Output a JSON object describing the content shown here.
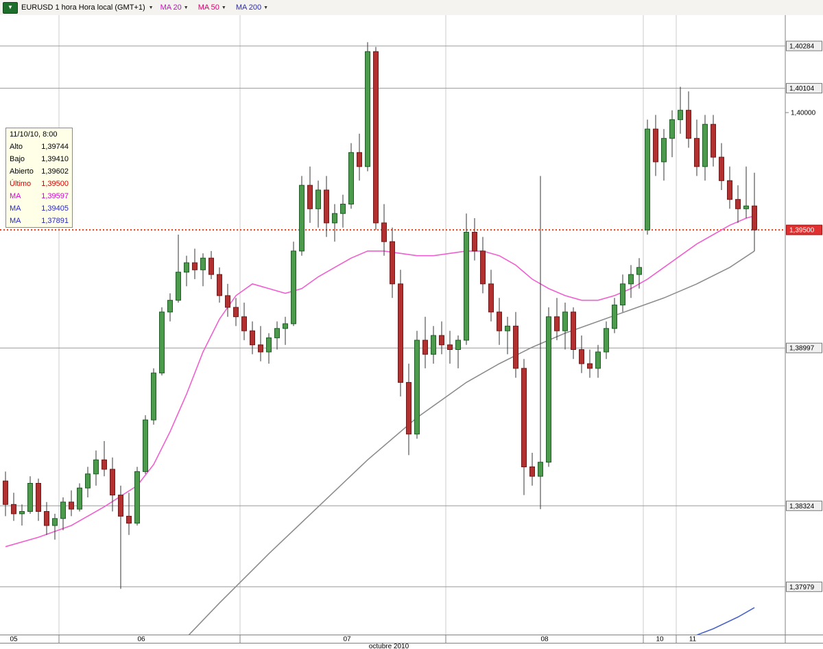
{
  "toolbar": {
    "symbol_label": "EURUSD 1 hora Hora local (GMT+1)",
    "symbol_icon_glyph": "▼",
    "dropdown_glyph": "▼",
    "ma_buttons": [
      {
        "label": "MA 20",
        "color": "#d800d8"
      },
      {
        "label": "MA 50",
        "color": "#d8006c"
      },
      {
        "label": "MA 200",
        "color": "#2626c9"
      }
    ]
  },
  "tooltip": {
    "datetime": "11/10/10, 8:00",
    "rows": [
      {
        "label": "Alto",
        "value": "1,39744",
        "color": "#000000"
      },
      {
        "label": "Bajo",
        "value": "1,39410",
        "color": "#000000"
      },
      {
        "label": "Abierto",
        "value": "1,39602",
        "color": "#000000"
      },
      {
        "label": "Último",
        "value": "1,39500",
        "color": "#d00000"
      },
      {
        "label": "MA",
        "value": "1,39597",
        "color": "#d800d8"
      },
      {
        "label": "MA",
        "value": "1,39405",
        "color": "#2626c9"
      },
      {
        "label": "MA",
        "value": "1,37891",
        "color": "#2626c9"
      }
    ]
  },
  "colors": {
    "candle_up": "#4c9a4c",
    "candle_up_border": "#1f5c26",
    "candle_down": "#b23030",
    "candle_down_border": "#6f1a1a",
    "wick": "#333333",
    "grid": "#999999",
    "day_grid": "#cccccc",
    "axis_line": "#808080",
    "last_price_line": "#ff3300",
    "label_box_bg": "#f0f0f0",
    "label_box_border": "#777777",
    "last_label_bg": "#e03030",
    "last_label_text": "#ffffff"
  },
  "chart_data": {
    "type": "candlestick",
    "symbol": "EURUSD",
    "timeframe": "1 hora",
    "timezone": "Hora local (GMT+1)",
    "last_price": 1.395,
    "y_axis": {
      "grid_prices": [
        1.40284,
        1.40104,
        1.38997,
        1.38324,
        1.37979
      ],
      "boxed_labels": [
        {
          "price": 1.40284,
          "label": "1,40284"
        },
        {
          "price": 1.40104,
          "label": "1,40104"
        },
        {
          "price": 1.38997,
          "label": "1,38997"
        },
        {
          "price": 1.38324,
          "label": "1,38324"
        },
        {
          "price": 1.37979,
          "label": "1,37979"
        }
      ],
      "plain_labels": [
        {
          "price": 1.4,
          "label": "1,40000"
        }
      ],
      "last_label": {
        "price": 1.395,
        "label": "1,39500"
      }
    },
    "x_axis": {
      "month_label": "octubre 2010",
      "day_labels": [
        {
          "label": "05",
          "i": 1
        },
        {
          "label": "06",
          "i": 16.5
        },
        {
          "label": "07",
          "i": 41.5
        },
        {
          "label": "08",
          "i": 65.5
        },
        {
          "label": "10",
          "i": 79.5
        },
        {
          "label": "11",
          "i": 83.5
        }
      ],
      "day_boundaries": [
        6.5,
        28.5,
        53.5,
        77.5,
        81.5
      ]
    },
    "candles": [
      [
        1.3843,
        1.3847,
        1.3828,
        1.3833
      ],
      [
        1.3833,
        1.3838,
        1.3826,
        1.3829
      ],
      [
        1.3829,
        1.3833,
        1.3824,
        1.383
      ],
      [
        1.383,
        1.3845,
        1.3829,
        1.3842
      ],
      [
        1.3842,
        1.3844,
        1.3826,
        1.383
      ],
      [
        1.383,
        1.3834,
        1.382,
        1.3824
      ],
      [
        1.3824,
        1.3829,
        1.3818,
        1.3827
      ],
      [
        1.3827,
        1.3836,
        1.3822,
        1.3834
      ],
      [
        1.3834,
        1.3839,
        1.3828,
        1.3831
      ],
      [
        1.3831,
        1.3842,
        1.383,
        1.384
      ],
      [
        1.384,
        1.3849,
        1.3836,
        1.3846
      ],
      [
        1.3846,
        1.3856,
        1.3841,
        1.3852
      ],
      [
        1.3852,
        1.386,
        1.3845,
        1.3848
      ],
      [
        1.3848,
        1.3853,
        1.383,
        1.3837
      ],
      [
        1.3837,
        1.3841,
        1.3797,
        1.3828
      ],
      [
        1.3828,
        1.3838,
        1.382,
        1.3825
      ],
      [
        1.3825,
        1.3849,
        1.3824,
        1.3847
      ],
      [
        1.3847,
        1.3871,
        1.3846,
        1.3869
      ],
      [
        1.3869,
        1.3891,
        1.3867,
        1.3889
      ],
      [
        1.3889,
        1.3917,
        1.3888,
        1.3915
      ],
      [
        1.3915,
        1.3923,
        1.3911,
        1.392
      ],
      [
        1.392,
        1.3948,
        1.3919,
        1.3932
      ],
      [
        1.3932,
        1.3939,
        1.3926,
        1.3936
      ],
      [
        1.3936,
        1.3942,
        1.3929,
        1.3933
      ],
      [
        1.3933,
        1.394,
        1.3926,
        1.3938
      ],
      [
        1.3938,
        1.3941,
        1.3929,
        1.3931
      ],
      [
        1.3931,
        1.3934,
        1.3919,
        1.3922
      ],
      [
        1.3922,
        1.3927,
        1.3913,
        1.3917
      ],
      [
        1.3917,
        1.3921,
        1.3909,
        1.3913
      ],
      [
        1.3913,
        1.3919,
        1.3903,
        1.3907
      ],
      [
        1.3907,
        1.3911,
        1.3897,
        1.3901
      ],
      [
        1.3901,
        1.3909,
        1.3894,
        1.3898
      ],
      [
        1.3898,
        1.3906,
        1.3893,
        1.3904
      ],
      [
        1.3904,
        1.3911,
        1.3899,
        1.3908
      ],
      [
        1.3908,
        1.3913,
        1.3901,
        1.391
      ],
      [
        1.391,
        1.3945,
        1.3909,
        1.3941
      ],
      [
        1.3941,
        1.3973,
        1.3939,
        1.3969
      ],
      [
        1.3969,
        1.3977,
        1.3953,
        1.3959
      ],
      [
        1.3959,
        1.3971,
        1.3951,
        1.3967
      ],
      [
        1.3967,
        1.3973,
        1.3947,
        1.3953
      ],
      [
        1.3953,
        1.3961,
        1.3945,
        1.3957
      ],
      [
        1.3957,
        1.3965,
        1.3951,
        1.3961
      ],
      [
        1.3961,
        1.3987,
        1.3959,
        1.3983
      ],
      [
        1.3983,
        1.3991,
        1.3971,
        1.3977
      ],
      [
        1.3977,
        1.403,
        1.3975,
        1.4026
      ],
      [
        1.4026,
        1.4028,
        1.395,
        1.3953
      ],
      [
        1.3953,
        1.3961,
        1.3939,
        1.3945
      ],
      [
        1.3945,
        1.3951,
        1.3921,
        1.3927
      ],
      [
        1.3927,
        1.3933,
        1.3879,
        1.3885
      ],
      [
        1.3885,
        1.3893,
        1.3854,
        1.3863
      ],
      [
        1.3863,
        1.3907,
        1.3861,
        1.3903
      ],
      [
        1.3903,
        1.3913,
        1.3891,
        1.3897
      ],
      [
        1.3897,
        1.3909,
        1.3893,
        1.3905
      ],
      [
        1.3905,
        1.3911,
        1.3897,
        1.3901
      ],
      [
        1.3901,
        1.3907,
        1.3893,
        1.3899
      ],
      [
        1.3899,
        1.3905,
        1.3891,
        1.3903
      ],
      [
        1.3903,
        1.3957,
        1.3901,
        1.3949
      ],
      [
        1.3949,
        1.3955,
        1.3937,
        1.3941
      ],
      [
        1.3941,
        1.3947,
        1.3923,
        1.3927
      ],
      [
        1.3927,
        1.3933,
        1.3911,
        1.3915
      ],
      [
        1.3915,
        1.3921,
        1.3901,
        1.3907
      ],
      [
        1.3907,
        1.3913,
        1.3897,
        1.3909
      ],
      [
        1.3909,
        1.3915,
        1.3887,
        1.3891
      ],
      [
        1.3891,
        1.3895,
        1.3837,
        1.3849
      ],
      [
        1.3849,
        1.3855,
        1.3841,
        1.3845
      ],
      [
        1.3845,
        1.3973,
        1.3831,
        1.3851
      ],
      [
        1.3851,
        1.3917,
        1.3849,
        1.3913
      ],
      [
        1.3913,
        1.3921,
        1.3903,
        1.3907
      ],
      [
        1.3907,
        1.3919,
        1.3899,
        1.3915
      ],
      [
        1.3915,
        1.3917,
        1.3895,
        1.3899
      ],
      [
        1.3899,
        1.3905,
        1.3889,
        1.3893
      ],
      [
        1.3893,
        1.3899,
        1.3887,
        1.3891
      ],
      [
        1.3891,
        1.3901,
        1.3887,
        1.3898
      ],
      [
        1.3898,
        1.3911,
        1.3895,
        1.3908
      ],
      [
        1.3908,
        1.3921,
        1.3906,
        1.3918
      ],
      [
        1.3918,
        1.3931,
        1.3915,
        1.3927
      ],
      [
        1.3927,
        1.3935,
        1.3921,
        1.3931
      ],
      [
        1.3931,
        1.3938,
        1.3925,
        1.3934
      ],
      [
        1.395,
        1.3997,
        1.3948,
        1.3993
      ],
      [
        1.3993,
        1.3999,
        1.3973,
        1.3979
      ],
      [
        1.3979,
        1.3993,
        1.3971,
        1.3989
      ],
      [
        1.3989,
        1.4001,
        1.3981,
        1.3997
      ],
      [
        1.3997,
        1.4011,
        1.3991,
        1.4001
      ],
      [
        1.4001,
        1.4009,
        1.3985,
        1.3989
      ],
      [
        1.3989,
        1.3997,
        1.3973,
        1.3977
      ],
      [
        1.3977,
        1.3999,
        1.3971,
        1.3995
      ],
      [
        1.3995,
        1.3999,
        1.3977,
        1.3981
      ],
      [
        1.3981,
        1.3987,
        1.3967,
        1.3971
      ],
      [
        1.3971,
        1.3977,
        1.3959,
        1.3963
      ],
      [
        1.3963,
        1.3969,
        1.3953,
        1.3959
      ],
      [
        1.3959,
        1.3977,
        1.3955,
        1.39602
      ],
      [
        1.39602,
        1.39744,
        1.3941,
        1.395
      ]
    ],
    "ma_series": [
      {
        "name": "ma-20",
        "period": 20,
        "color": "#ef5fd0",
        "last_value": 1.39597,
        "points": [
          [
            0,
            1.3815
          ],
          [
            4,
            1.3819
          ],
          [
            8,
            1.3824
          ],
          [
            12,
            1.3832
          ],
          [
            16,
            1.3841
          ],
          [
            18,
            1.385
          ],
          [
            20,
            1.3864
          ],
          [
            22,
            1.388
          ],
          [
            24,
            1.3898
          ],
          [
            26,
            1.3912
          ],
          [
            28,
            1.3922
          ],
          [
            30,
            1.3927
          ],
          [
            32,
            1.3925
          ],
          [
            34,
            1.3923
          ],
          [
            36,
            1.3925
          ],
          [
            38,
            1.393
          ],
          [
            40,
            1.3934
          ],
          [
            42,
            1.3938
          ],
          [
            44,
            1.3941
          ],
          [
            46,
            1.3941
          ],
          [
            48,
            1.394
          ],
          [
            50,
            1.3939
          ],
          [
            52,
            1.3939
          ],
          [
            54,
            1.394
          ],
          [
            56,
            1.3941
          ],
          [
            58,
            1.3941
          ],
          [
            60,
            1.3939
          ],
          [
            62,
            1.3935
          ],
          [
            64,
            1.3929
          ],
          [
            66,
            1.3925
          ],
          [
            68,
            1.3922
          ],
          [
            70,
            1.392
          ],
          [
            72,
            1.392
          ],
          [
            74,
            1.3922
          ],
          [
            76,
            1.3925
          ],
          [
            78,
            1.3929
          ],
          [
            80,
            1.3934
          ],
          [
            82,
            1.3939
          ],
          [
            84,
            1.3944
          ],
          [
            86,
            1.3948
          ],
          [
            88,
            1.3952
          ],
          [
            90,
            1.3955
          ],
          [
            91,
            1.3956
          ]
        ]
      },
      {
        "name": "ma-50",
        "period": 50,
        "color": "#8c8c8c",
        "last_value": 1.39405,
        "points": [
          [
            20,
            1.3769
          ],
          [
            26,
            1.3791
          ],
          [
            32,
            1.3812
          ],
          [
            38,
            1.3832
          ],
          [
            44,
            1.3852
          ],
          [
            50,
            1.387
          ],
          [
            56,
            1.3885
          ],
          [
            60,
            1.3893
          ],
          [
            64,
            1.39
          ],
          [
            68,
            1.3906
          ],
          [
            72,
            1.3911
          ],
          [
            76,
            1.3916
          ],
          [
            80,
            1.3921
          ],
          [
            84,
            1.3927
          ],
          [
            88,
            1.3934
          ],
          [
            91,
            1.3941
          ]
        ]
      },
      {
        "name": "ma-200",
        "period": 200,
        "color": "#4a63c8",
        "last_value": 1.37891,
        "points": [
          [
            77,
            1.3768
          ],
          [
            80,
            1.3772
          ],
          [
            83,
            1.3776
          ],
          [
            86,
            1.378
          ],
          [
            89,
            1.3785
          ],
          [
            91,
            1.3789
          ]
        ]
      }
    ]
  }
}
